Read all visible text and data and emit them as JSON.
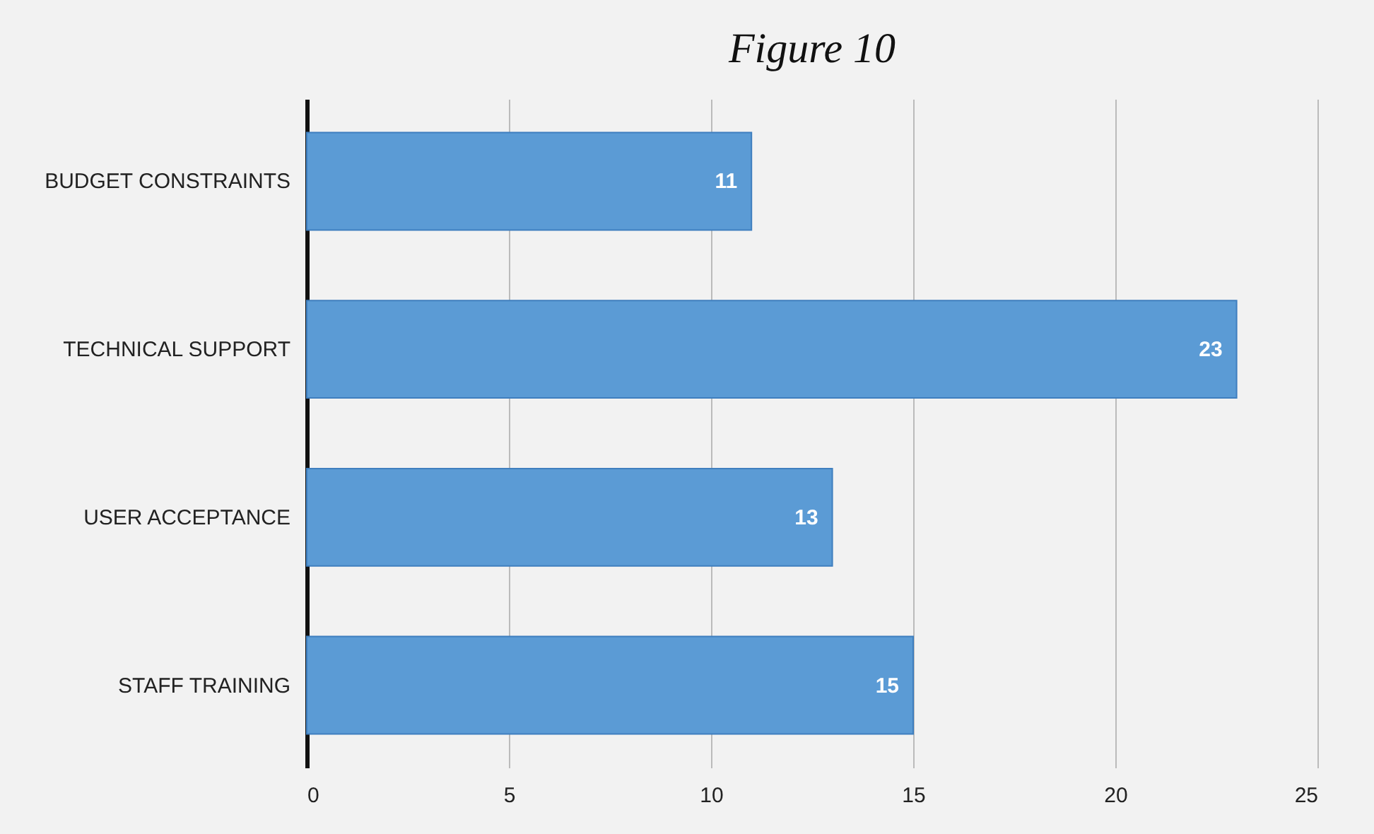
{
  "chart_data": {
    "type": "bar",
    "orientation": "horizontal",
    "title": "Figure 10",
    "categories": [
      "BUDGET CONSTRAINTS",
      "TECHNICAL SUPPORT",
      "USER ACCEPTANCE",
      "STAFF TRAINING"
    ],
    "values": [
      11,
      23,
      13,
      15
    ],
    "color": "#5b9bd5",
    "xlim": [
      0,
      25
    ],
    "xticks": [
      0,
      5,
      10,
      15,
      20,
      25
    ],
    "grid": "x",
    "data_labels": true
  }
}
